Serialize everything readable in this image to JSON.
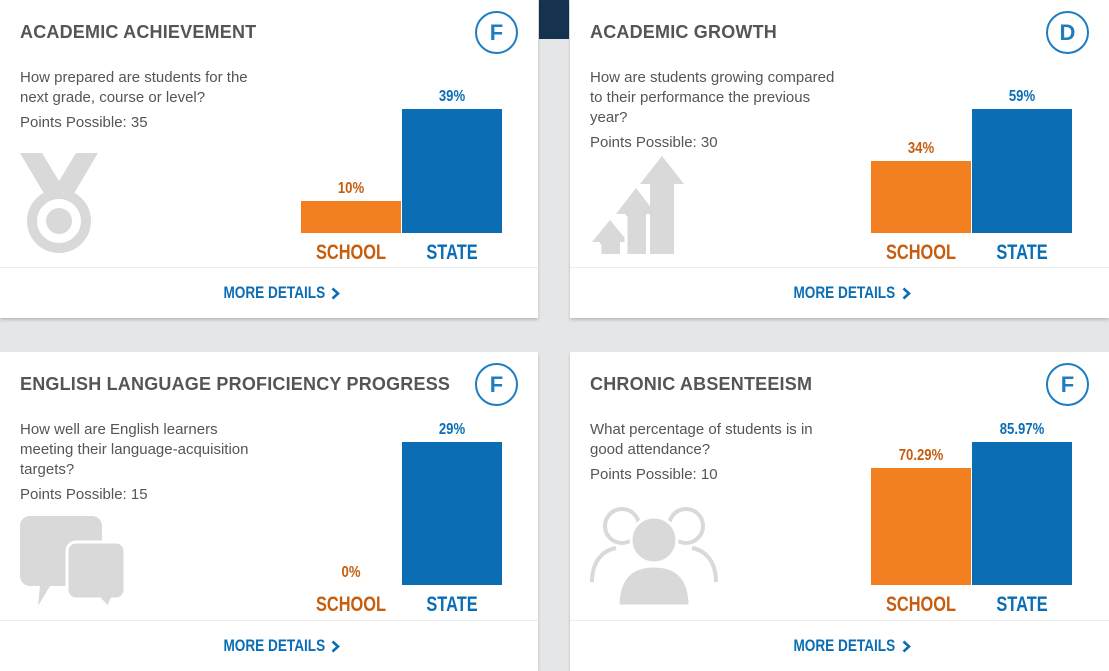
{
  "colors": {
    "school": "#f28021",
    "school_text": "#c65d0f",
    "state": "#0b6eb4",
    "grade_ring": "#1e7dc1",
    "icon_gray": "#d9d9d9"
  },
  "cards": [
    {
      "title": "ACADEMIC ACHIEVEMENT",
      "grade": "F",
      "question": "How prepared are students for the next grade, course or level?",
      "points": "Points Possible: 35",
      "icon": "medal-icon",
      "more": "MORE DETAILS",
      "chart_data": {
        "type": "bar",
        "categories": [
          "SCHOOL",
          "STATE"
        ],
        "values": [
          10,
          39
        ],
        "value_labels": [
          "10%",
          "39%"
        ],
        "ylim": [
          0,
          45
        ]
      }
    },
    {
      "title": "ACADEMIC GROWTH",
      "grade": "D",
      "question": "How are students growing compared to their performance the previous year?",
      "points": "Points Possible: 30",
      "icon": "growth-arrows-icon",
      "more": "MORE DETAILS",
      "chart_data": {
        "type": "bar",
        "categories": [
          "SCHOOL",
          "STATE"
        ],
        "values": [
          34,
          59
        ],
        "value_labels": [
          "34%",
          "59%"
        ],
        "ylim": [
          0,
          68
        ]
      }
    },
    {
      "title": "ENGLISH LANGUAGE PROFICIENCY PROGRESS",
      "grade": "F",
      "question": "How well are English learners meeting their language-acquisition targets?",
      "points": "Points Possible: 15",
      "icon": "speech-bubbles-icon",
      "more": "MORE DETAILS",
      "chart_data": {
        "type": "bar",
        "categories": [
          "SCHOOL",
          "STATE"
        ],
        "values": [
          0,
          29
        ],
        "value_labels": [
          "0%",
          "29%"
        ],
        "ylim": [
          0,
          29
        ]
      }
    },
    {
      "title": "CHRONIC ABSENTEEISM",
      "grade": "F",
      "question": "What percentage of students is in good attendance?",
      "points": "Points Possible: 10",
      "icon": "people-icon",
      "more": "MORE DETAILS",
      "chart_data": {
        "type": "bar",
        "categories": [
          "SCHOOL",
          "STATE"
        ],
        "values": [
          70.29,
          85.97
        ],
        "value_labels": [
          "70.29%",
          "85.97%"
        ],
        "ylim": [
          0,
          85.97
        ]
      }
    }
  ]
}
